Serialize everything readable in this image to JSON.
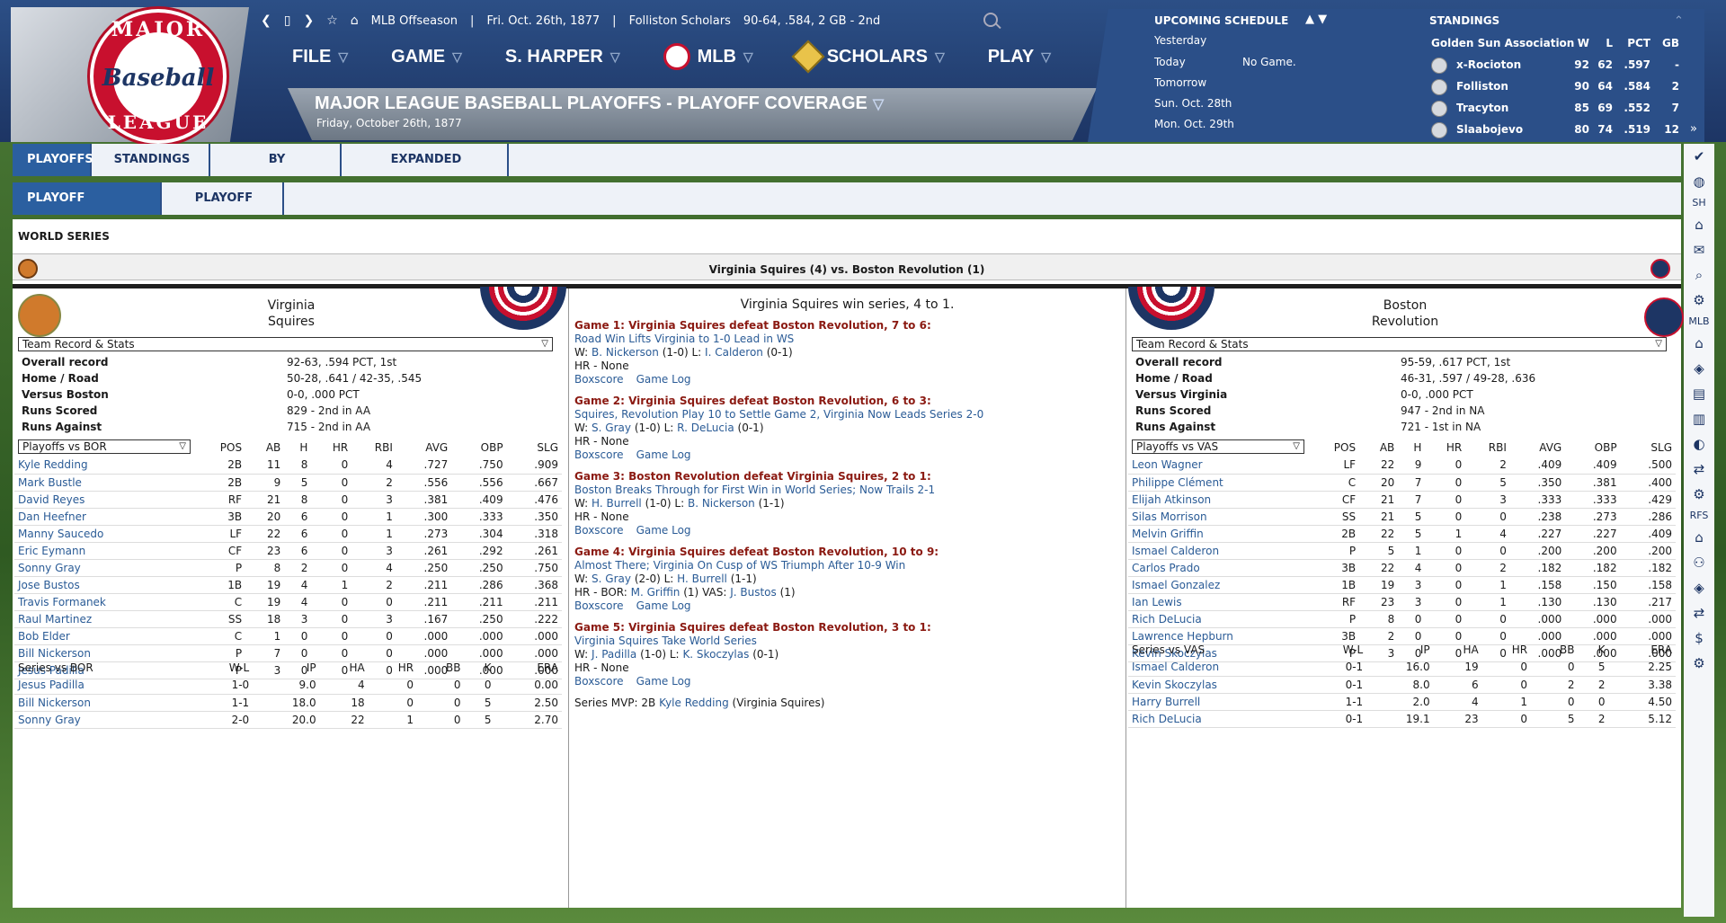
{
  "app": {
    "topbar_text": "MLB Offseason",
    "date": "Fri. Oct. 26th, 1877",
    "team": "Folliston Scholars",
    "record": "90-64, .584, 2 GB - 2nd",
    "logo_top": "MAJOR",
    "logo_mid": "Baseball",
    "logo_bot": "LEAGUE"
  },
  "menu": {
    "file": "FILE",
    "game": "GAME",
    "manager": "S. HARPER",
    "mlb": "MLB",
    "scholars": "SCHOLARS",
    "play": "PLAY"
  },
  "page": {
    "title": "MAJOR LEAGUE BASEBALL PLAYOFFS - PLAYOFF COVERAGE",
    "subtitle": "Friday, October 26th, 1877"
  },
  "schedule": {
    "title": "UPCOMING SCHEDULE",
    "rows": [
      {
        "label": "Yesterday",
        "value": ""
      },
      {
        "label": "Today",
        "value": "No Game."
      },
      {
        "label": "Tomorrow",
        "value": ""
      },
      {
        "label": "Sun. Oct. 28th",
        "value": ""
      },
      {
        "label": "Mon. Oct. 29th",
        "value": ""
      }
    ]
  },
  "standings": {
    "title": "STANDINGS",
    "league": "Golden Sun Association",
    "h_w": "W",
    "h_l": "L",
    "h_pct": "PCT",
    "h_gb": "GB",
    "rows": [
      {
        "team": "x-Rocioton",
        "w": "92",
        "l": "62",
        "pct": ".597",
        "gb": "-"
      },
      {
        "team": "Folliston",
        "w": "90",
        "l": "64",
        "pct": ".584",
        "gb": "2"
      },
      {
        "team": "Tracyton",
        "w": "85",
        "l": "69",
        "pct": ".552",
        "gb": "7"
      },
      {
        "team": "Slaabojevo",
        "w": "80",
        "l": "74",
        "pct": ".519",
        "gb": "12"
      }
    ]
  },
  "tabs": {
    "playoffs": "PLAYOFFS",
    "standings": "STANDINGS",
    "by_subleague": "BY SUBLEAGUE",
    "expanded": "EXPANDED STANDINGS",
    "coverage": "PLAYOFF COVERAGE",
    "tree": "PLAYOFF TREE"
  },
  "toolbar": {
    "sh": "SH",
    "mlb": "MLB",
    "rfs": "RFS"
  },
  "series": {
    "label": "WORLD SERIES",
    "title": "Virginia Squires (4) vs. Boston Revolution (1)",
    "result": "Virginia Squires win series, 4 to 1.",
    "games": [
      {
        "title": "Game 1: Virginia Squires defeat Boston Revolution, 7 to 6:",
        "story": "Road Win Lifts Virginia to 1-0 Lead in WS",
        "w_label": "W:",
        "w": "B. Nickerson",
        "w_rec": "(1-0)",
        "l_label": "L:",
        "l": "I. Calderon",
        "l_rec": "(0-1)",
        "hr": "HR - None",
        "box": "Boxscore",
        "log": "Game Log"
      },
      {
        "title": "Game 2: Virginia Squires defeat Boston Revolution, 6 to 3:",
        "story": "Squires, Revolution Play 10 to Settle Game 2, Virginia Now Leads Series 2-0",
        "w_label": "W:",
        "w": "S. Gray",
        "w_rec": "(1-0)",
        "l_label": "L:",
        "l": "R. DeLucia",
        "l_rec": "(0-1)",
        "hr": "HR - None",
        "box": "Boxscore",
        "log": "Game Log"
      },
      {
        "title": "Game 3: Boston Revolution defeat Virginia Squires, 2 to 1:",
        "story": "Boston Breaks Through for First Win in World Series; Now Trails 2-1",
        "w_label": "W:",
        "w": "H. Burrell",
        "w_rec": "(1-0)",
        "l_label": "L:",
        "l": "B. Nickerson",
        "l_rec": "(1-1)",
        "hr": "HR - None",
        "box": "Boxscore",
        "log": "Game Log"
      },
      {
        "title": "Game 4: Virginia Squires defeat Boston Revolution, 10 to 9:",
        "story": "Almost There; Virginia On Cusp of WS Triumph After 10-9 Win",
        "w_label": "W:",
        "w": "S. Gray",
        "w_rec": "(2-0)",
        "l_label": "L:",
        "l": "H. Burrell",
        "l_rec": "(1-1)",
        "hr": "HR - BOR:",
        "hr_p1": "M. Griffin",
        "hr_p1n": "(1)",
        "hr_mid": "VAS:",
        "hr_p2": "J. Bustos",
        "hr_p2n": "(1)",
        "box": "Boxscore",
        "log": "Game Log"
      },
      {
        "title": "Game 5: Virginia Squires defeat Boston Revolution, 3 to 1:",
        "story": "Virginia Squires Take World Series",
        "w_label": "W:",
        "w": "J. Padilla",
        "w_rec": "(1-0)",
        "l_label": "L:",
        "l": "K. Skoczylas",
        "l_rec": "(0-1)",
        "hr": "HR - None",
        "box": "Boxscore",
        "log": "Game Log"
      }
    ],
    "mvp_label": "Series MVP: 2B",
    "mvp": "Kyle Redding",
    "mvp_team": "(Virginia Squires)"
  },
  "left": {
    "name1": "Virginia",
    "name2": "Squires",
    "select": "Team Record & Stats",
    "rec": [
      {
        "k": "Overall record",
        "v": "92-63, .594 PCT, 1st"
      },
      {
        "k": "Home / Road",
        "v": "50-28, .641 / 42-35, .545"
      },
      {
        "k": "Versus Boston",
        "v": "0-0, .000 PCT"
      },
      {
        "k": "Runs Scored",
        "v": "829 - 2nd  in AA"
      },
      {
        "k": "Runs Against",
        "v": "715 - 2nd  in AA"
      }
    ],
    "bat_select": "Playoffs vs BOR",
    "bat_head": [
      "POS",
      "AB",
      "H",
      "HR",
      "RBI",
      "AVG",
      "OBP",
      "SLG"
    ],
    "bat": [
      [
        "Kyle Redding",
        "2B",
        "11",
        "8",
        "0",
        "4",
        ".727",
        ".750",
        ".909"
      ],
      [
        "Mark Bustle",
        "2B",
        "9",
        "5",
        "0",
        "2",
        ".556",
        ".556",
        ".667"
      ],
      [
        "David Reyes",
        "RF",
        "21",
        "8",
        "0",
        "3",
        ".381",
        ".409",
        ".476"
      ],
      [
        "Dan Heefner",
        "3B",
        "20",
        "6",
        "0",
        "1",
        ".300",
        ".333",
        ".350"
      ],
      [
        "Manny Saucedo",
        "LF",
        "22",
        "6",
        "0",
        "1",
        ".273",
        ".304",
        ".318"
      ],
      [
        "Eric Eymann",
        "CF",
        "23",
        "6",
        "0",
        "3",
        ".261",
        ".292",
        ".261"
      ],
      [
        "Sonny Gray",
        "P",
        "8",
        "2",
        "0",
        "4",
        ".250",
        ".250",
        ".750"
      ],
      [
        "Jose Bustos",
        "1B",
        "19",
        "4",
        "1",
        "2",
        ".211",
        ".286",
        ".368"
      ],
      [
        "Travis Formanek",
        "C",
        "19",
        "4",
        "0",
        "0",
        ".211",
        ".211",
        ".211"
      ],
      [
        "Raul Martinez",
        "SS",
        "18",
        "3",
        "0",
        "3",
        ".167",
        ".250",
        ".222"
      ],
      [
        "Bob Elder",
        "C",
        "1",
        "0",
        "0",
        "0",
        ".000",
        ".000",
        ".000"
      ],
      [
        "Bill Nickerson",
        "P",
        "7",
        "0",
        "0",
        "0",
        ".000",
        ".000",
        ".000"
      ],
      [
        "Jesus Padilla",
        "P",
        "3",
        "0",
        "0",
        "0",
        ".000",
        ".000",
        ".000"
      ]
    ],
    "pit_label": "Series vs BOR",
    "pit_head": [
      "W-L",
      "IP",
      "HA",
      "HR",
      "BB",
      "K",
      "ERA"
    ],
    "pit": [
      [
        "Jesus Padilla",
        "1-0",
        "9.0",
        "4",
        "0",
        "0",
        "0",
        "0.00"
      ],
      [
        "Bill Nickerson",
        "1-1",
        "18.0",
        "18",
        "0",
        "0",
        "5",
        "2.50"
      ],
      [
        "Sonny Gray",
        "2-0",
        "20.0",
        "22",
        "1",
        "0",
        "5",
        "2.70"
      ]
    ]
  },
  "right": {
    "name1": "Boston",
    "name2": "Revolution",
    "select": "Team Record & Stats",
    "rec": [
      {
        "k": "Overall record",
        "v": "95-59, .617 PCT, 1st"
      },
      {
        "k": "Home / Road",
        "v": "46-31, .597 / 49-28, .636"
      },
      {
        "k": "Versus Virginia",
        "v": "0-0, .000 PCT"
      },
      {
        "k": "Runs Scored",
        "v": "947 - 2nd  in NA"
      },
      {
        "k": "Runs Against",
        "v": "721 - 1st  in NA"
      }
    ],
    "bat_select": "Playoffs vs VAS",
    "bat_head": [
      "POS",
      "AB",
      "H",
      "HR",
      "RBI",
      "AVG",
      "OBP",
      "SLG"
    ],
    "bat": [
      [
        "Leon Wagner",
        "LF",
        "22",
        "9",
        "0",
        "2",
        ".409",
        ".409",
        ".500"
      ],
      [
        "Philippe Clément",
        "C",
        "20",
        "7",
        "0",
        "5",
        ".350",
        ".381",
        ".400"
      ],
      [
        "Elijah Atkinson",
        "CF",
        "21",
        "7",
        "0",
        "3",
        ".333",
        ".333",
        ".429"
      ],
      [
        "Silas Morrison",
        "SS",
        "21",
        "5",
        "0",
        "0",
        ".238",
        ".273",
        ".286"
      ],
      [
        "Melvin Griffin",
        "2B",
        "22",
        "5",
        "1",
        "4",
        ".227",
        ".227",
        ".409"
      ],
      [
        "Ismael Calderon",
        "P",
        "5",
        "1",
        "0",
        "0",
        ".200",
        ".200",
        ".200"
      ],
      [
        "Carlos Prado",
        "3B",
        "22",
        "4",
        "0",
        "2",
        ".182",
        ".182",
        ".182"
      ],
      [
        "Ismael Gonzalez",
        "1B",
        "19",
        "3",
        "0",
        "1",
        ".158",
        ".150",
        ".158"
      ],
      [
        "Ian Lewis",
        "RF",
        "23",
        "3",
        "0",
        "1",
        ".130",
        ".130",
        ".217"
      ],
      [
        "Rich DeLucia",
        "P",
        "8",
        "0",
        "0",
        "0",
        ".000",
        ".000",
        ".000"
      ],
      [
        "Lawrence Hepburn",
        "3B",
        "2",
        "0",
        "0",
        "0",
        ".000",
        ".000",
        ".000"
      ],
      [
        "Kevin Skoczylas",
        "P",
        "3",
        "0",
        "0",
        "0",
        ".000",
        ".000",
        ".000"
      ]
    ],
    "pit_label": "Series vs VAS",
    "pit_head": [
      "W-L",
      "IP",
      "HA",
      "HR",
      "BB",
      "K",
      "ERA"
    ],
    "pit": [
      [
        "Ismael Calderon",
        "0-1",
        "16.0",
        "19",
        "0",
        "0",
        "5",
        "2.25"
      ],
      [
        "Kevin Skoczylas",
        "0-1",
        "8.0",
        "6",
        "0",
        "2",
        "2",
        "3.38"
      ],
      [
        "Harry Burrell",
        "1-1",
        "2.0",
        "4",
        "1",
        "0",
        "0",
        "4.50"
      ],
      [
        "Rich DeLucia",
        "0-1",
        "19.1",
        "23",
        "0",
        "5",
        "2",
        "5.12"
      ]
    ]
  }
}
